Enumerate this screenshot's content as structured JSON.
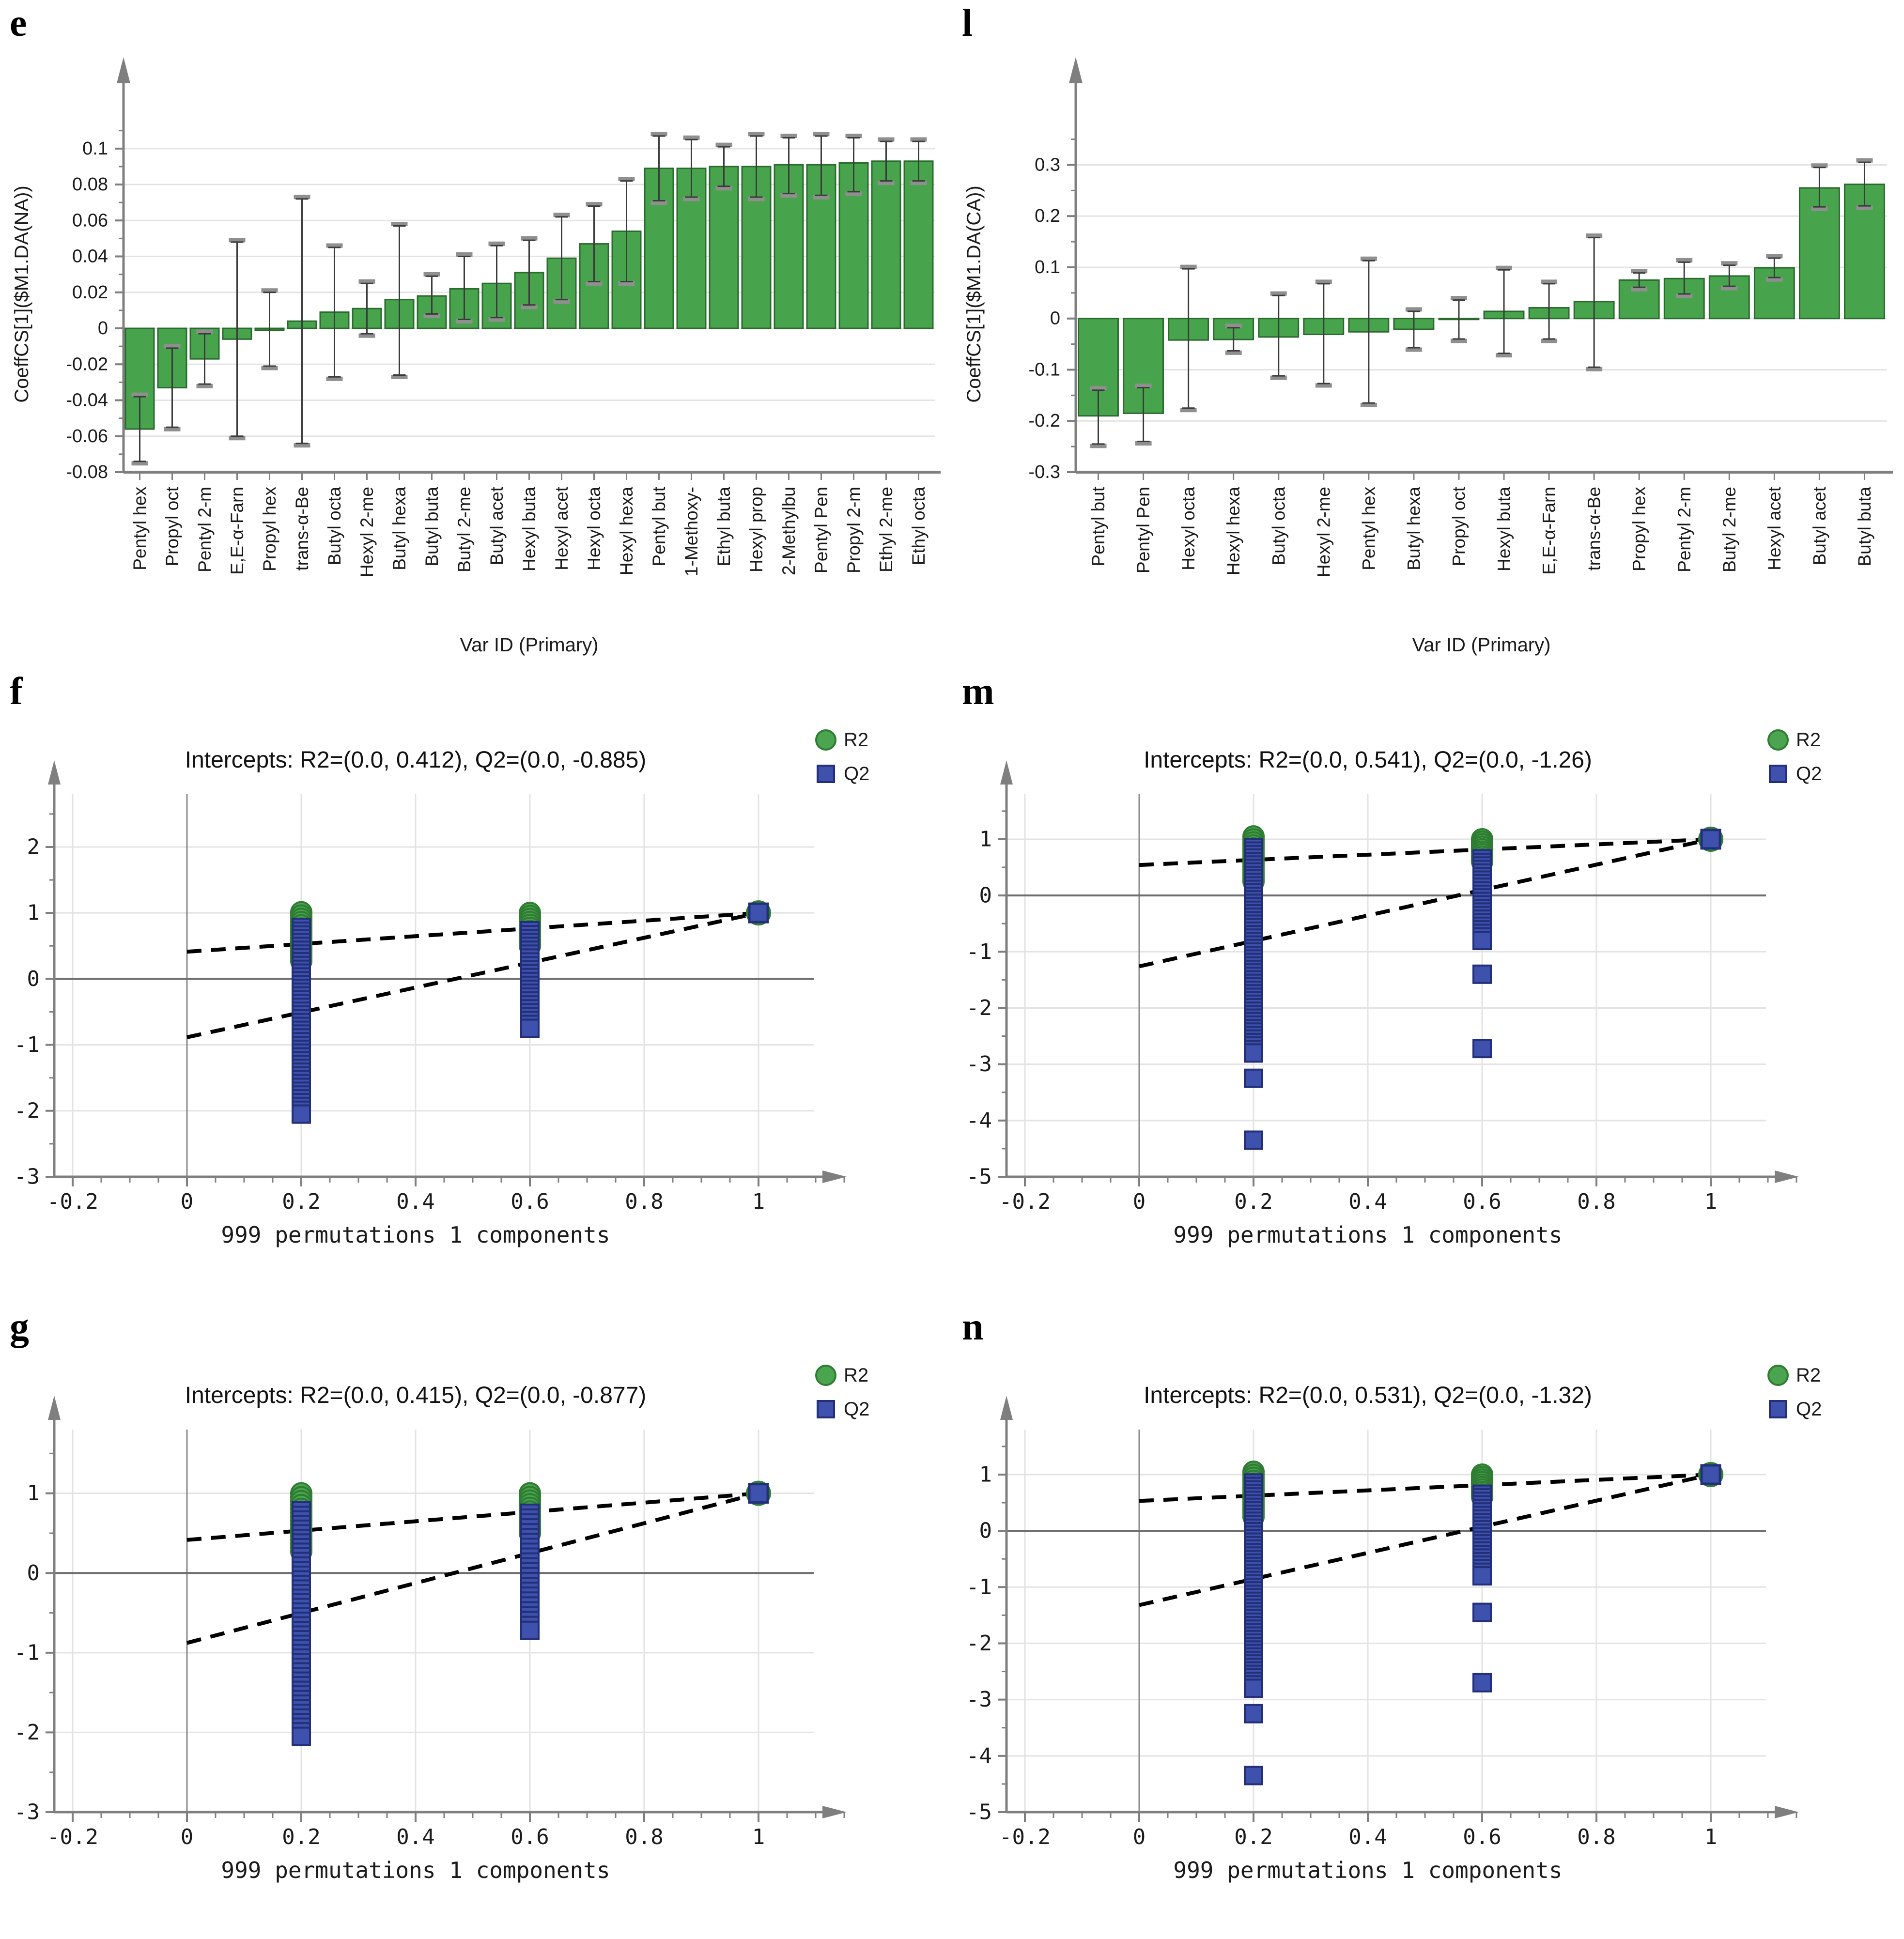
{
  "figure": {
    "colors": {
      "bar_fill": "#48a44c",
      "bar_stroke": "#2b6a2f",
      "error_line": "#3b3b3b",
      "error_cap": "#8f8f8f",
      "grid": "#e3e3e3",
      "axis": "#7f7f7f",
      "zero_line": "#6e6e6e",
      "x0_line": "#8a8a8a",
      "r2_fill": "#4ba550",
      "r2_stroke": "#2e7d32",
      "q2_fill": "#3d51ad",
      "q2_stroke": "#232f78",
      "dashed": "#000000",
      "text": "#1a1a1a"
    }
  },
  "panels": [
    {
      "id": "e",
      "label": "e",
      "kind": "bar",
      "chart_data": {
        "type": "bar",
        "xlabel": "Var ID (Primary)",
        "ylabel": "CoeffCS[1]($M1.DA(NA))",
        "ylim": [
          -0.08,
          0.118
        ],
        "yticks": [
          0.1,
          0.08,
          0.06,
          0.04,
          0.02,
          0,
          -0.02,
          -0.04,
          -0.06,
          -0.08
        ],
        "ytick_labels": [
          "0.1",
          "0.08",
          "0.06",
          "0.04",
          "0.02",
          "0",
          "-0.02",
          "-0.04",
          "-0.06",
          "-0.08"
        ],
        "categories": [
          "Pentyl hex",
          "Propyl oct",
          "Pentyl 2-m",
          "E,E-α-Farn",
          "Propyl hex",
          "trans-α-Be",
          "Butyl octa",
          "Hexyl 2-me",
          "Butyl hexa",
          "Butyl buta",
          "Butyl 2-me",
          "Butyl acet",
          "Hexyl buta",
          "Hexyl acet",
          "Hexyl octa",
          "Hexyl hexa",
          "Pentyl but",
          "1-Methoxy-",
          "Ethyl buta",
          "Hexyl prop",
          "2-Methylbu",
          "Pentyl Pen",
          "Propyl 2-m",
          "Ethyl 2-me",
          "Ethyl octa"
        ],
        "values": [
          -0.056,
          -0.033,
          -0.017,
          -0.006,
          -0.001,
          0.004,
          0.009,
          0.011,
          0.016,
          0.018,
          0.022,
          0.025,
          0.031,
          0.039,
          0.047,
          0.054,
          0.089,
          0.089,
          0.09,
          0.09,
          0.091,
          0.091,
          0.092,
          0.093,
          0.093
        ],
        "error_low": [
          -0.074,
          -0.055,
          -0.031,
          -0.06,
          -0.021,
          -0.064,
          -0.027,
          -0.003,
          -0.026,
          0.008,
          0.005,
          0.006,
          0.013,
          0.016,
          0.026,
          0.026,
          0.071,
          0.073,
          0.079,
          0.073,
          0.075,
          0.074,
          0.076,
          0.082,
          0.082
        ],
        "error_high": [
          -0.038,
          -0.011,
          -0.003,
          0.048,
          0.02,
          0.072,
          0.045,
          0.025,
          0.057,
          0.029,
          0.04,
          0.046,
          0.049,
          0.062,
          0.068,
          0.082,
          0.107,
          0.105,
          0.101,
          0.107,
          0.106,
          0.107,
          0.106,
          0.104,
          0.104
        ]
      }
    },
    {
      "id": "l",
      "label": "l",
      "kind": "bar",
      "chart_data": {
        "type": "bar",
        "xlabel": "Var ID (Primary)",
        "ylabel": "CoeffCS[1]($M1.DA(CA))",
        "ylim": [
          -0.3,
          0.395
        ],
        "yticks": [
          0.3,
          0.2,
          0.1,
          0,
          -0.1,
          -0.2,
          -0.3
        ],
        "ytick_labels": [
          "0.3",
          "0.2",
          "0.1",
          "0",
          "-0.1",
          "-0.2",
          "-0.3"
        ],
        "categories": [
          "Pentyl but",
          "Pentyl Pen",
          "Hexyl octa",
          "Hexyl hexa",
          "Butyl octa",
          "Hexyl 2-me",
          "Pentyl hex",
          "Butyl hexa",
          "Propyl oct",
          "Hexyl buta",
          "E,E-α-Farn",
          "trans-α-Be",
          "Propyl hex",
          "Pentyl 2-m",
          "Butyl 2-me",
          "Hexyl acet",
          "Butyl acet",
          "Butyl buta"
        ],
        "values": [
          -0.19,
          -0.185,
          -0.042,
          -0.041,
          -0.036,
          -0.031,
          -0.026,
          -0.021,
          -0.001,
          0.014,
          0.021,
          0.033,
          0.075,
          0.078,
          0.083,
          0.099,
          0.255,
          0.262
        ],
        "error_low": [
          -0.245,
          -0.24,
          -0.175,
          -0.063,
          -0.112,
          -0.127,
          -0.165,
          -0.057,
          -0.04,
          -0.068,
          -0.04,
          -0.095,
          0.061,
          0.048,
          0.063,
          0.08,
          0.218,
          0.22
        ],
        "error_high": [
          -0.14,
          -0.135,
          0.097,
          -0.018,
          0.045,
          0.068,
          0.113,
          0.014,
          0.036,
          0.095,
          0.068,
          0.158,
          0.089,
          0.11,
          0.104,
          0.118,
          0.295,
          0.305
        ]
      }
    },
    {
      "id": "f",
      "label": "f",
      "kind": "permutation",
      "chart_data": {
        "type": "scatter",
        "title": "Intercepts: R2=(0.0, 0.412), Q2=(0.0, -0.885)",
        "xlabel": "999 permutations 1 components",
        "legend": [
          {
            "label": "R2",
            "marker": "circle"
          },
          {
            "label": "Q2",
            "marker": "square"
          }
        ],
        "xticks": [
          -0.2,
          0,
          0.2,
          0.4,
          0.6,
          0.8,
          1
        ],
        "xtick_labels": [
          "-0.2",
          "0",
          "0.2",
          "0.4",
          "0.6",
          "0.8",
          "1"
        ],
        "yticks": [
          2,
          1,
          0,
          -1,
          -2,
          -3
        ],
        "ytick_labels": [
          "2",
          "1",
          "0",
          "-1",
          "-2",
          "-3"
        ],
        "ylim": [
          -3,
          2.8
        ],
        "r2_line": {
          "x0": 0,
          "y0": 0.412,
          "x1": 1,
          "y1": 1.0
        },
        "q2_line": {
          "x0": 0,
          "y0": -0.885,
          "x1": 1,
          "y1": 1.0
        },
        "r2_clusters": [
          {
            "x": 0.2,
            "ymax": 1.01,
            "ymin": 0.27,
            "count": 16
          },
          {
            "x": 0.6,
            "ymax": 1.0,
            "ymin": 0.5,
            "count": 12
          }
        ],
        "q2_clusters": [
          {
            "x": 0.2,
            "ymax": 0.78,
            "ymin": -2.05,
            "count": 50
          },
          {
            "x": 0.6,
            "ymax": 0.73,
            "ymin": -0.75,
            "count": 26
          }
        ],
        "q2_outliers": [],
        "reference_point": {
          "x": 1,
          "y": 1
        }
      }
    },
    {
      "id": "m",
      "label": "m",
      "kind": "permutation",
      "chart_data": {
        "type": "scatter",
        "title": "Intercepts: R2=(0.0, 0.541), Q2=(0.0, -1.26)",
        "xlabel": "999 permutations 1 components",
        "legend": [
          {
            "label": "R2",
            "marker": "circle"
          },
          {
            "label": "Q2",
            "marker": "square"
          }
        ],
        "xticks": [
          -0.2,
          0,
          0.2,
          0.4,
          0.6,
          0.8,
          1
        ],
        "xtick_labels": [
          "-0.2",
          "0",
          "0.2",
          "0.4",
          "0.6",
          "0.8",
          "1"
        ],
        "yticks": [
          1,
          0,
          -1,
          -2,
          -3,
          -4,
          -5
        ],
        "ytick_labels": [
          "1",
          "0",
          "-1",
          "-2",
          "-3",
          "-4",
          "-5"
        ],
        "ylim": [
          -5,
          1.8
        ],
        "r2_line": {
          "x0": 0,
          "y0": 0.541,
          "x1": 1,
          "y1": 1.0
        },
        "q2_line": {
          "x0": 0,
          "y0": -1.26,
          "x1": 1,
          "y1": 1.0
        },
        "r2_clusters": [
          {
            "x": 0.2,
            "ymax": 1.05,
            "ymin": 0.25,
            "count": 16
          },
          {
            "x": 0.6,
            "ymax": 1.0,
            "ymin": 0.6,
            "count": 10
          }
        ],
        "q2_clusters": [
          {
            "x": 0.2,
            "ymax": 0.85,
            "ymin": -2.8,
            "count": 60
          },
          {
            "x": 0.6,
            "ymax": 0.65,
            "ymin": -0.8,
            "count": 24
          }
        ],
        "q2_outliers": [
          {
            "x": 0.2,
            "y": -3.25
          },
          {
            "x": 0.2,
            "y": -4.35
          },
          {
            "x": 0.6,
            "y": -1.4
          },
          {
            "x": 0.6,
            "y": -2.72
          }
        ],
        "reference_point": {
          "x": 1,
          "y": 1
        }
      }
    },
    {
      "id": "g",
      "label": "g",
      "kind": "permutation",
      "chart_data": {
        "type": "scatter",
        "title": "Intercepts: R2=(0.0, 0.415), Q2=(0.0, -0.877)",
        "xlabel": "999 permutations 1 components",
        "legend": [
          {
            "label": "R2",
            "marker": "circle"
          },
          {
            "label": "Q2",
            "marker": "square"
          }
        ],
        "xticks": [
          -0.2,
          0,
          0.2,
          0.4,
          0.6,
          0.8,
          1
        ],
        "xtick_labels": [
          "-0.2",
          "0",
          "0.2",
          "0.4",
          "0.6",
          "0.8",
          "1"
        ],
        "yticks": [
          1,
          0,
          -1,
          -2,
          -3
        ],
        "ytick_labels": [
          "1",
          "0",
          "-1",
          "-2",
          "-3"
        ],
        "ylim": [
          -3,
          1.8
        ],
        "r2_line": {
          "x0": 0,
          "y0": 0.415,
          "x1": 1,
          "y1": 1.0
        },
        "q2_line": {
          "x0": 0,
          "y0": -0.877,
          "x1": 1,
          "y1": 1.0
        },
        "r2_clusters": [
          {
            "x": 0.2,
            "ymax": 1.0,
            "ymin": 0.27,
            "count": 16
          },
          {
            "x": 0.6,
            "ymax": 1.0,
            "ymin": 0.5,
            "count": 12
          }
        ],
        "q2_clusters": [
          {
            "x": 0.2,
            "ymax": 0.78,
            "ymin": -2.05,
            "count": 50
          },
          {
            "x": 0.6,
            "ymax": 0.75,
            "ymin": -0.72,
            "count": 25
          }
        ],
        "q2_outliers": [],
        "reference_point": {
          "x": 1,
          "y": 1
        }
      }
    },
    {
      "id": "n",
      "label": "n",
      "kind": "permutation",
      "chart_data": {
        "type": "scatter",
        "title": "Intercepts: R2=(0.0, 0.531), Q2=(0.0, -1.32)",
        "xlabel": "999 permutations 1 components",
        "legend": [
          {
            "label": "R2",
            "marker": "circle"
          },
          {
            "label": "Q2",
            "marker": "square"
          }
        ],
        "xticks": [
          -0.2,
          0,
          0.2,
          0.4,
          0.6,
          0.8,
          1
        ],
        "xtick_labels": [
          "-0.2",
          "0",
          "0.2",
          "0.4",
          "0.6",
          "0.8",
          "1"
        ],
        "yticks": [
          1,
          0,
          -1,
          -2,
          -3,
          -4,
          -5
        ],
        "ytick_labels": [
          "1",
          "0",
          "-1",
          "-2",
          "-3",
          "-4",
          "-5"
        ],
        "ylim": [
          -5,
          1.8
        ],
        "r2_line": {
          "x0": 0,
          "y0": 0.531,
          "x1": 1,
          "y1": 1.0
        },
        "q2_line": {
          "x0": 0,
          "y0": -1.32,
          "x1": 1,
          "y1": 1.0
        },
        "r2_clusters": [
          {
            "x": 0.2,
            "ymax": 1.05,
            "ymin": 0.25,
            "count": 16
          },
          {
            "x": 0.6,
            "ymax": 1.0,
            "ymin": 0.6,
            "count": 10
          }
        ],
        "q2_clusters": [
          {
            "x": 0.2,
            "ymax": 0.85,
            "ymin": -2.8,
            "count": 60
          },
          {
            "x": 0.6,
            "ymax": 0.65,
            "ymin": -0.8,
            "count": 24
          }
        ],
        "q2_outliers": [
          {
            "x": 0.2,
            "y": -3.25
          },
          {
            "x": 0.2,
            "y": -4.35
          },
          {
            "x": 0.6,
            "y": -1.45
          },
          {
            "x": 0.6,
            "y": -2.7
          }
        ],
        "reference_point": {
          "x": 1,
          "y": 1
        }
      }
    }
  ]
}
